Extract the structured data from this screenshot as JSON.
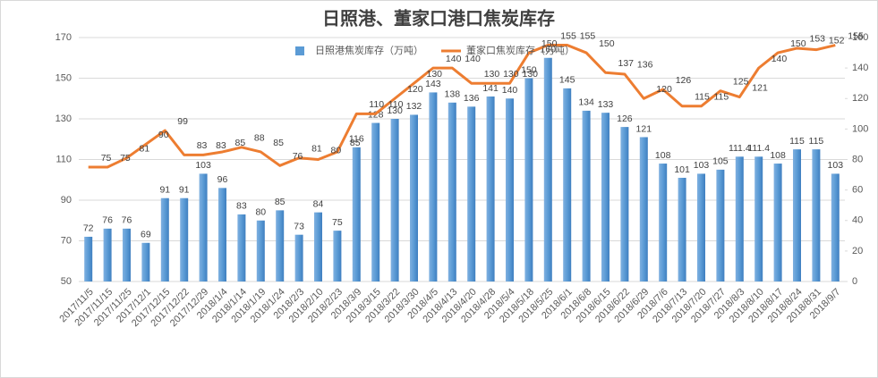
{
  "chart_data": {
    "type": "bar_line",
    "title": "日照港、董家口港口焦炭库存",
    "categories": [
      "2017/11/5",
      "2017/11/15",
      "2017/11/25",
      "2017/12/1",
      "2017/12/15",
      "2017/12/22",
      "2017/12/29",
      "2018/1/4",
      "2018/1/14",
      "2018/1/19",
      "2018/1/24",
      "2018/2/3",
      "2018/2/10",
      "2018/2/23",
      "2018/3/9",
      "2018/3/15",
      "2018/3/22",
      "2018/3/30",
      "2018/4/5",
      "2018/4/13",
      "2018/4/20",
      "2018/4/28",
      "2018/5/4",
      "2018/5/18",
      "2018/5/25",
      "2018/6/1",
      "2018/6/8",
      "2018/6/15",
      "2018/6/22",
      "2018/6/29",
      "2018/7/6",
      "2018/7/13",
      "2018/7/20",
      "2018/7/27",
      "2018/8/3",
      "2018/8/10",
      "2018/8/17",
      "2018/8/24",
      "2018/8/31",
      "2018/9/7"
    ],
    "series": [
      {
        "name": "日照港焦炭库存（万吨）",
        "type": "bar",
        "color": "#5b9bd5",
        "values": [
          72,
          76,
          76,
          69,
          91,
          91,
          103,
          96,
          83,
          80,
          85,
          73,
          84,
          75,
          116,
          128,
          130,
          132,
          143,
          138,
          136,
          141,
          140,
          150,
          160,
          145,
          134,
          133,
          126,
          121,
          108,
          101,
          103,
          105,
          111.4,
          111.4,
          108,
          115,
          115,
          103
        ]
      },
      {
        "name": "董家口焦炭库存（万吨）",
        "type": "line",
        "axis": "y2",
        "color": "#ed7d31",
        "values": [
          75,
          75,
          81,
          90,
          99,
          83,
          83,
          85,
          88,
          85,
          76,
          81,
          80,
          85,
          110,
          110,
          120,
          130,
          140,
          140,
          130,
          130,
          130,
          150,
          155,
          155,
          150,
          137,
          136,
          120,
          126,
          115,
          115,
          125,
          121,
          140,
          150,
          153,
          152,
          155
        ]
      }
    ],
    "ylim": [
      50,
      170
    ],
    "yticks": [
      50,
      70,
      90,
      110,
      130,
      150,
      170
    ],
    "y2lim": [
      0,
      160
    ],
    "y2ticks": [
      0,
      20,
      40,
      60,
      80,
      100,
      120,
      140,
      160
    ],
    "grid": true,
    "legend": "top"
  }
}
